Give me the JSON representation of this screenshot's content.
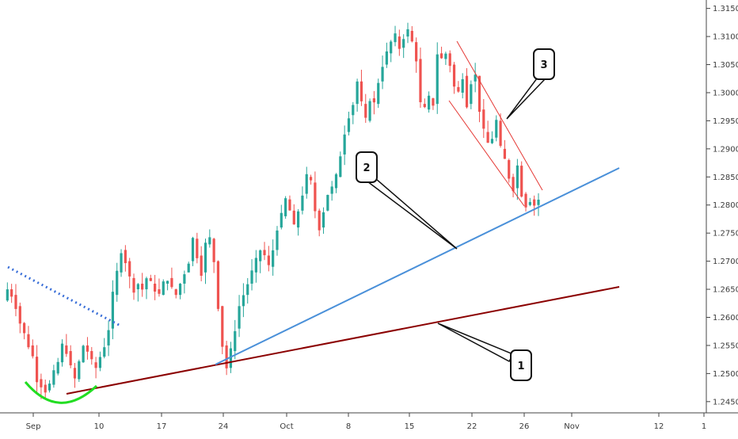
{
  "chart_data": {
    "type": "candlestick",
    "title": "",
    "xlabel": "",
    "ylabel": "",
    "x_ticks": [
      "Sep",
      "10",
      "17",
      "24",
      "Oct",
      "8",
      "15",
      "22",
      "26",
      "Nov",
      "12",
      "1"
    ],
    "y_ticks": [
      "1.24500",
      "1.25000",
      "1.25500",
      "1.26000",
      "1.26500",
      "1.27000",
      "1.27500",
      "1.28000",
      "1.28500",
      "1.29000",
      "1.29500",
      "1.30000",
      "1.30500",
      "1.31000",
      "1.31500"
    ],
    "ylim": [
      1.243,
      1.3165
    ],
    "grid": false,
    "colors": {
      "up": "#26a69a",
      "down": "#ef5350",
      "trend1": "#8b0000",
      "trend2": "#4a90d9",
      "channel": "#e53935",
      "resistance": "#3a6fd8",
      "cup": "#22dd22"
    },
    "annotations": [
      {
        "label": "1"
      },
      {
        "label": "2"
      },
      {
        "label": "3"
      }
    ],
    "price_path": [
      1.263,
      1.265,
      1.264,
      1.262,
      1.259,
      1.257,
      1.255,
      1.253,
      1.249,
      1.248,
      1.247,
      1.248,
      1.25,
      1.252,
      1.255,
      1.254,
      1.251,
      1.249,
      1.252,
      1.255,
      1.254,
      1.252,
      1.251,
      1.253,
      1.255,
      1.258,
      1.264,
      1.268,
      1.272,
      1.27,
      1.267,
      1.265,
      1.266,
      1.265,
      1.267,
      1.266,
      1.265,
      1.264,
      1.266,
      1.267,
      1.265,
      1.264,
      1.266,
      1.268,
      1.27,
      1.274,
      1.271,
      1.268,
      1.273,
      1.274,
      1.27,
      1.262,
      1.255,
      1.251,
      1.254,
      1.258,
      1.262,
      1.264,
      1.266,
      1.268,
      1.27,
      1.272,
      1.271,
      1.269,
      1.272,
      1.276,
      1.278,
      1.281,
      1.279,
      1.276,
      1.279,
      1.282,
      1.285,
      1.284,
      1.279,
      1.276,
      1.279,
      1.282,
      1.283,
      1.285,
      1.289,
      1.293,
      1.296,
      1.298,
      1.302,
      1.298,
      1.295,
      1.299,
      1.298,
      1.302,
      1.305,
      1.307,
      1.309,
      1.31,
      1.308,
      1.31,
      1.311,
      1.309,
      1.306,
      1.298,
      1.297,
      1.299,
      1.298,
      1.307,
      1.306,
      1.307,
      1.305,
      1.301,
      1.3,
      1.303,
      1.298,
      1.302,
      1.303,
      1.297,
      1.293,
      1.291,
      1.292,
      1.295,
      1.29,
      1.288,
      1.285,
      1.283,
      1.287,
      1.282,
      1.28,
      1.281,
      1.28,
      1.281
    ]
  }
}
